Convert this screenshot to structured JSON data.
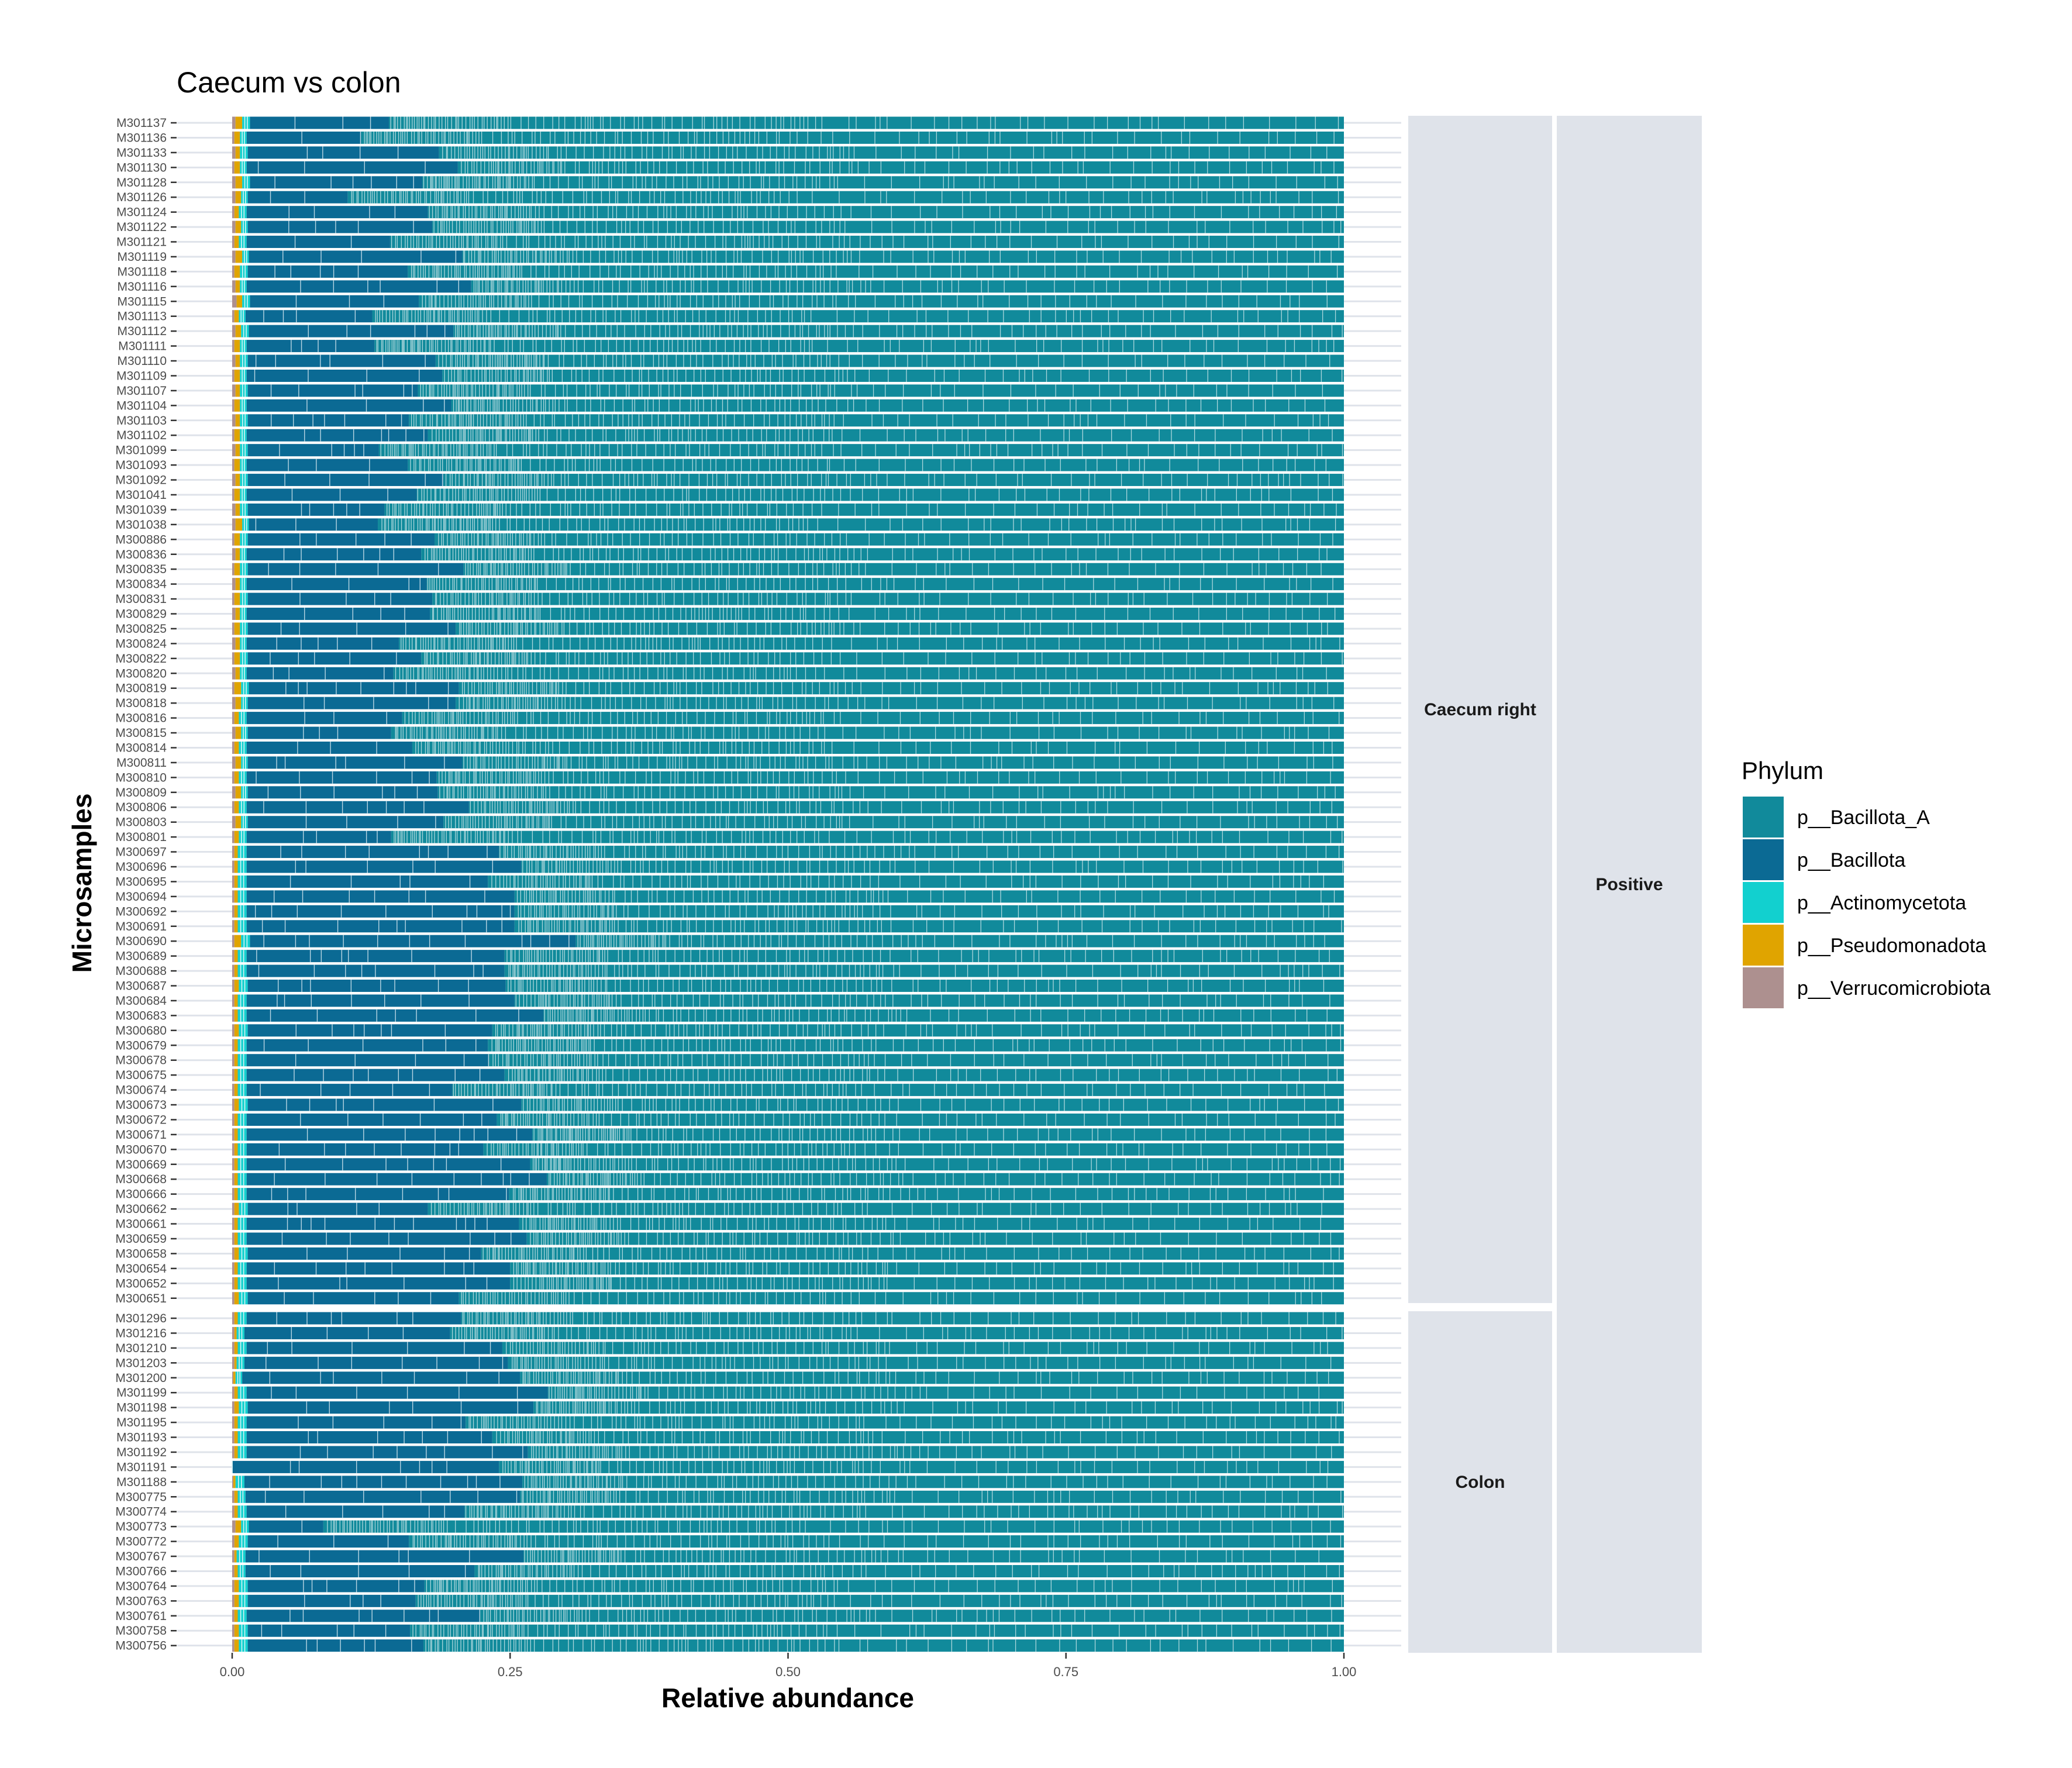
{
  "chart_data": {
    "type": "bar",
    "orientation": "horizontal",
    "stacked": true,
    "title": "Caecum vs colon",
    "xlabel": "Relative abundance",
    "ylabel": "Microsamples",
    "xlim": [
      0,
      1
    ],
    "x_ticks": [
      "0.00",
      "0.25",
      "0.50",
      "0.75",
      "1.00"
    ],
    "grid": true,
    "legend_position": "right",
    "legend": {
      "title": "Phylum",
      "entries": [
        {
          "name": "p__Bacillota_A",
          "color": "#118a9b"
        },
        {
          "name": "p__Bacillota",
          "color": "#0b6a94"
        },
        {
          "name": "p__Actinomycetota",
          "color": "#12d0cf"
        },
        {
          "name": "p__Pseudomonadota",
          "color": "#e0a400"
        },
        {
          "name": "p__Verrucomicrobiota",
          "color": "#ad908f"
        }
      ]
    },
    "facet_outer": "Positive",
    "facets": [
      {
        "name": "Caecum right",
        "samples": [
          "M301137",
          "M301136",
          "M301133",
          "M301130",
          "M301128",
          "M301126",
          "M301124",
          "M301122",
          "M301121",
          "M301119",
          "M301118",
          "M301116",
          "M301115",
          "M301113",
          "M301112",
          "M301111",
          "M301110",
          "M301109",
          "M301107",
          "M301104",
          "M301103",
          "M301102",
          "M301099",
          "M301093",
          "M301092",
          "M301041",
          "M301039",
          "M301038",
          "M300886",
          "M300836",
          "M300835",
          "M300834",
          "M300831",
          "M300829",
          "M300825",
          "M300824",
          "M300822",
          "M300820",
          "M300819",
          "M300818",
          "M300816",
          "M300815",
          "M300814",
          "M300811",
          "M300810",
          "M300809",
          "M300806",
          "M300803",
          "M300801",
          "M300697",
          "M300696",
          "M300695",
          "M300694",
          "M300692",
          "M300691",
          "M300690",
          "M300689",
          "M300688",
          "M300687",
          "M300684",
          "M300683",
          "M300680",
          "M300679",
          "M300678",
          "M300675",
          "M300674",
          "M300673",
          "M300672",
          "M300671",
          "M300670",
          "M300669",
          "M300668",
          "M300666",
          "M300662",
          "M300661",
          "M300659",
          "M300658",
          "M300654",
          "M300652",
          "M300651"
        ],
        "verrucomicrobiota": [
          0.003,
          0.002,
          0.003,
          0.002,
          0.003,
          0.003,
          0.002,
          0.003,
          0.002,
          0.003,
          0.002,
          0.003,
          0.004,
          0.002,
          0.003,
          0.002,
          0.003,
          0.002,
          0.003,
          0.002,
          0.003,
          0.002,
          0.003,
          0.002,
          0.003,
          0.002,
          0.003,
          0.003,
          0.002,
          0.003,
          0.002,
          0.003,
          0.002,
          0.003,
          0.002,
          0.003,
          0.002,
          0.003,
          0.002,
          0.003,
          0.002,
          0.003,
          0.002,
          0.003,
          0.002,
          0.003,
          0.002,
          0.003,
          0.002,
          0.002,
          0.002,
          0.002,
          0.002,
          0.002,
          0.002,
          0.002,
          0.002,
          0.002,
          0.002,
          0.002,
          0.002,
          0.002,
          0.002,
          0.002,
          0.002,
          0.002,
          0.002,
          0.002,
          0.002,
          0.002,
          0.002,
          0.002,
          0.002,
          0.002,
          0.002,
          0.002,
          0.002,
          0.002,
          0.002,
          0.002
        ],
        "pseudomonadota": [
          0.006,
          0.005,
          0.004,
          0.005,
          0.006,
          0.005,
          0.004,
          0.005,
          0.004,
          0.006,
          0.005,
          0.004,
          0.005,
          0.004,
          0.005,
          0.005,
          0.004,
          0.005,
          0.004,
          0.005,
          0.004,
          0.005,
          0.004,
          0.005,
          0.004,
          0.005,
          0.004,
          0.006,
          0.005,
          0.004,
          0.005,
          0.004,
          0.005,
          0.004,
          0.005,
          0.004,
          0.005,
          0.004,
          0.006,
          0.005,
          0.004,
          0.005,
          0.004,
          0.005,
          0.004,
          0.005,
          0.004,
          0.005,
          0.004,
          0.003,
          0.003,
          0.003,
          0.003,
          0.003,
          0.003,
          0.006,
          0.003,
          0.003,
          0.004,
          0.003,
          0.003,
          0.004,
          0.003,
          0.003,
          0.003,
          0.003,
          0.004,
          0.003,
          0.003,
          0.003,
          0.003,
          0.003,
          0.003,
          0.004,
          0.003,
          0.003,
          0.004,
          0.003,
          0.003,
          0.004
        ],
        "actinomycetota": [
          0.007,
          0.006,
          0.007,
          0.006,
          0.007,
          0.006,
          0.007,
          0.006,
          0.007,
          0.006,
          0.007,
          0.006,
          0.007,
          0.006,
          0.007,
          0.006,
          0.007,
          0.006,
          0.007,
          0.006,
          0.007,
          0.006,
          0.007,
          0.006,
          0.007,
          0.006,
          0.007,
          0.006,
          0.007,
          0.006,
          0.007,
          0.006,
          0.007,
          0.006,
          0.007,
          0.006,
          0.007,
          0.006,
          0.007,
          0.006,
          0.007,
          0.006,
          0.007,
          0.006,
          0.007,
          0.006,
          0.007,
          0.006,
          0.007,
          0.008,
          0.008,
          0.008,
          0.008,
          0.008,
          0.008,
          0.008,
          0.008,
          0.008,
          0.008,
          0.008,
          0.008,
          0.008,
          0.008,
          0.008,
          0.008,
          0.008,
          0.008,
          0.008,
          0.008,
          0.008,
          0.008,
          0.008,
          0.008,
          0.008,
          0.008,
          0.008,
          0.008,
          0.008,
          0.008,
          0.008
        ],
        "bacillota": [
          0.125,
          0.103,
          0.172,
          0.19,
          0.155,
          0.09,
          0.163,
          0.166,
          0.129,
          0.192,
          0.144,
          0.202,
          0.152,
          0.114,
          0.184,
          0.115,
          0.169,
          0.176,
          0.153,
          0.184,
          0.145,
          0.163,
          0.118,
          0.145,
          0.176,
          0.153,
          0.123,
          0.116,
          0.168,
          0.157,
          0.194,
          0.162,
          0.166,
          0.165,
          0.187,
          0.137,
          0.156,
          0.132,
          0.189,
          0.187,
          0.14,
          0.129,
          0.149,
          0.193,
          0.171,
          0.171,
          0.2,
          0.176,
          0.13,
          0.227,
          0.247,
          0.217,
          0.241,
          0.241,
          0.241,
          0.293,
          0.232,
          0.232,
          0.232,
          0.241,
          0.267,
          0.22,
          0.217,
          0.218,
          0.232,
          0.185,
          0.246,
          0.225,
          0.257,
          0.213,
          0.255,
          0.27,
          0.236,
          0.162,
          0.245,
          0.252,
          0.21,
          0.237,
          0.237,
          0.19
        ]
      },
      {
        "name": "Colon",
        "samples": [
          "M301296",
          "M301216",
          "M301210",
          "M301203",
          "M301200",
          "M301199",
          "M301198",
          "M301195",
          "M301193",
          "M301192",
          "M301191",
          "M301188",
          "M300775",
          "M300774",
          "M300773",
          "M300772",
          "M300767",
          "M300766",
          "M300764",
          "M300763",
          "M300761",
          "M300758",
          "M300756"
        ],
        "verrucomicrobiota": [
          0.002,
          0.002,
          0.002,
          0.002,
          0.001,
          0.002,
          0.002,
          0.002,
          0.002,
          0.002,
          0.0,
          0.001,
          0.002,
          0.002,
          0.003,
          0.002,
          0.002,
          0.002,
          0.002,
          0.002,
          0.002,
          0.002,
          0.002
        ],
        "pseudomonadota": [
          0.003,
          0.002,
          0.003,
          0.002,
          0.002,
          0.003,
          0.004,
          0.003,
          0.003,
          0.003,
          0.0,
          0.002,
          0.003,
          0.003,
          0.005,
          0.004,
          0.002,
          0.003,
          0.004,
          0.004,
          0.003,
          0.004,
          0.004
        ],
        "actinomycetota": [
          0.008,
          0.007,
          0.008,
          0.007,
          0.006,
          0.008,
          0.008,
          0.008,
          0.008,
          0.008,
          0.0,
          0.008,
          0.007,
          0.008,
          0.007,
          0.008,
          0.008,
          0.007,
          0.008,
          0.008,
          0.008,
          0.008,
          0.008
        ],
        "bacillota": [
          0.193,
          0.185,
          0.23,
          0.237,
          0.25,
          0.271,
          0.257,
          0.197,
          0.221,
          0.253,
          0.24,
          0.25,
          0.247,
          0.196,
          0.067,
          0.145,
          0.25,
          0.206,
          0.159,
          0.151,
          0.21,
          0.146,
          0.158
        ]
      }
    ]
  }
}
